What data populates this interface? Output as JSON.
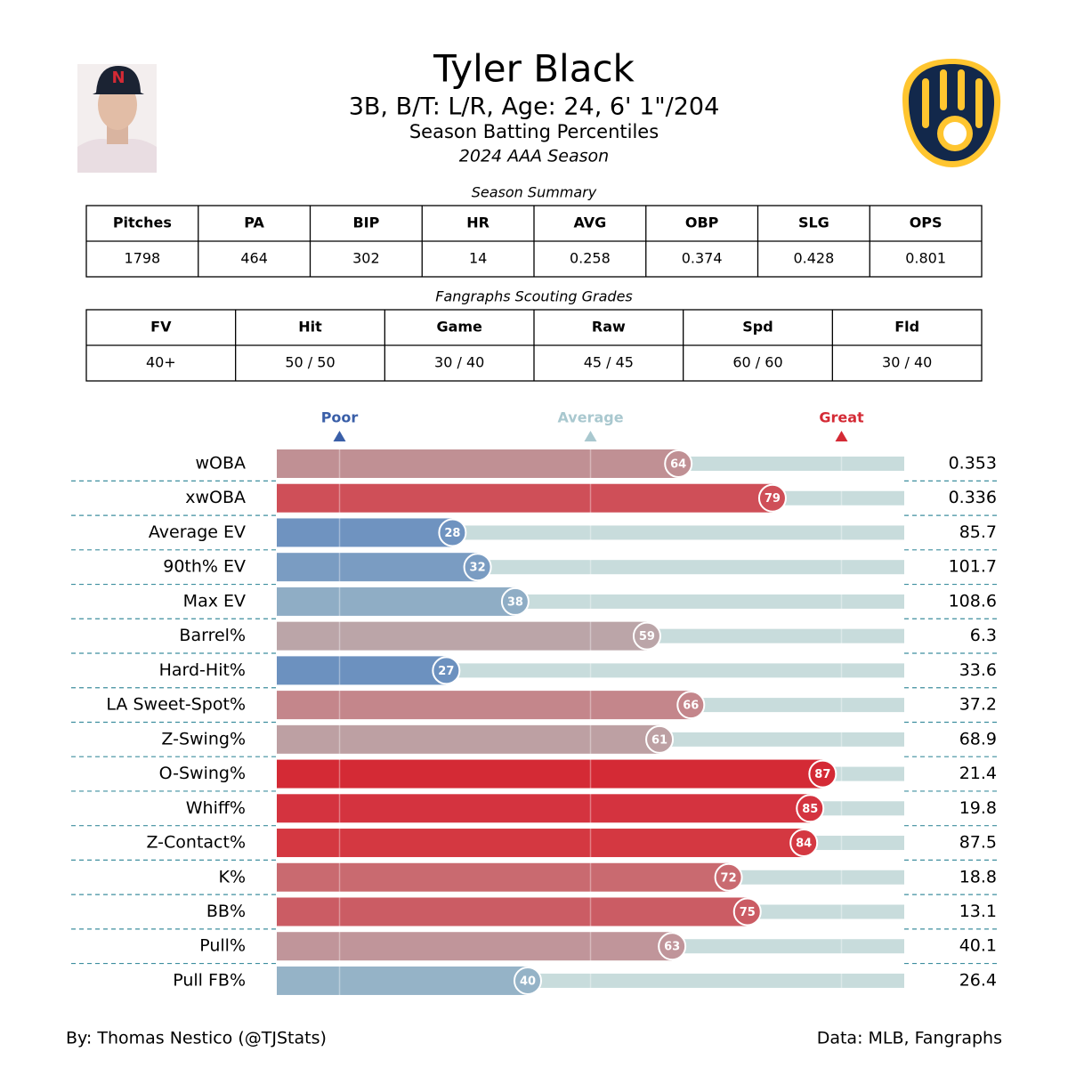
{
  "header": {
    "name": "Tyler Black",
    "bio": "3B, B/T: L/R, Age: 24, 6' 1\"/204",
    "title": "Season Batting Percentiles",
    "season": "2024 AAA Season"
  },
  "tables": [
    {
      "caption": "Season Summary",
      "columns": [
        "Pitches",
        "PA",
        "BIP",
        "HR",
        "AVG",
        "OBP",
        "SLG",
        "OPS"
      ],
      "rows": [
        [
          1798,
          464,
          302,
          14,
          0.258,
          0.374,
          0.428,
          0.801
        ]
      ]
    },
    {
      "caption": "Fangraphs Scouting Grades",
      "columns": [
        "FV",
        "Hit",
        "Game",
        "Raw",
        "Spd",
        "Fld"
      ],
      "rows": [
        [
          "40+",
          "50 / 50",
          "30 / 40",
          "45 / 45",
          "60 / 60",
          "30 / 40"
        ]
      ]
    }
  ],
  "chart_data": {
    "type": "bar",
    "orientation": "horizontal",
    "categories": [
      "wOBA",
      "xwOBA",
      "Average EV",
      "90th% EV",
      "Max EV",
      "Barrel%",
      "Hard-Hit%",
      "LA Sweet-Spot%",
      "Z-Swing%",
      "O-Swing%",
      "Whiff%",
      "Z-Contact%",
      "K%",
      "BB%",
      "Pull%",
      "Pull FB%"
    ],
    "values": [
      64,
      79,
      28,
      32,
      38,
      59,
      27,
      66,
      61,
      87,
      85,
      84,
      72,
      75,
      63,
      40
    ],
    "colors": [
      "#c09094",
      "#cf4f58",
      "#6f93c0",
      "#7a9cc2",
      "#8fadc5",
      "#bba5a8",
      "#6c91bf",
      "#c4868b",
      "#bda0a3",
      "#d42a35",
      "#d4333f",
      "#d43841",
      "#c96a70",
      "#cb5c64",
      "#c0959a",
      "#95b3c7"
    ],
    "stats": [
      0.353,
      0.336,
      85.7,
      101.7,
      108.6,
      6.3,
      33.6,
      37.2,
      68.9,
      21.4,
      19.8,
      87.5,
      18.8,
      13.1,
      40.1,
      26.4
    ],
    "xlim": [
      0,
      100
    ],
    "markers": [
      {
        "label": "Poor",
        "value": 10,
        "color": "#3a5fa8"
      },
      {
        "label": "Average",
        "value": 50,
        "color": "#a9c8cf"
      },
      {
        "label": "Great",
        "value": 90,
        "color": "#d42a35"
      }
    ]
  },
  "footer": {
    "credit": "By: Thomas Nestico (@TJStats)",
    "source": "Data: MLB, Fangraphs"
  }
}
